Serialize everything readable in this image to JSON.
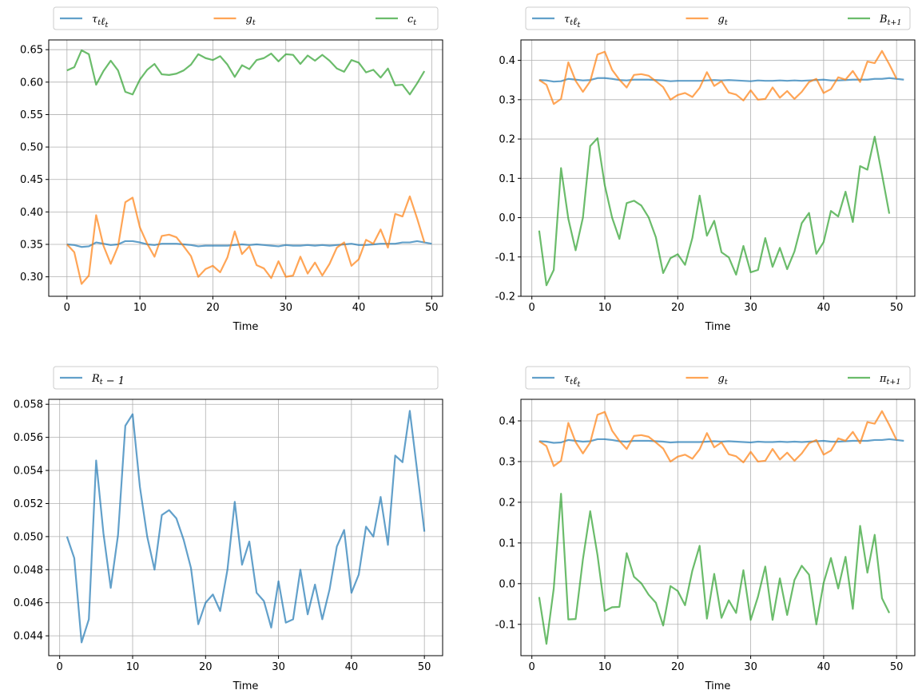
{
  "chart_data": [
    {
      "type": "line",
      "xlabel": "Time",
      "legend_placement": "top, above axes",
      "grid": true,
      "xlim": [
        -2.5,
        51.5
      ],
      "ylim": [
        0.27,
        0.665
      ],
      "xticks": [
        0,
        10,
        20,
        30,
        40,
        50
      ],
      "yticks": [
        0.3,
        0.35,
        0.4,
        0.45,
        0.5,
        0.55,
        0.6,
        0.65
      ],
      "ytick_decimals": 2,
      "x_start": 0,
      "series": [
        {
          "name": "τtℓt",
          "color": "#1f77b4",
          "values": [
            0.35,
            0.349,
            0.346,
            0.347,
            0.353,
            0.351,
            0.349,
            0.35,
            0.355,
            0.355,
            0.353,
            0.35,
            0.349,
            0.351,
            0.351,
            0.351,
            0.35,
            0.349,
            0.347,
            0.348,
            0.348,
            0.348,
            0.348,
            0.349,
            0.35,
            0.349,
            0.35,
            0.349,
            0.348,
            0.347,
            0.349,
            0.348,
            0.348,
            0.349,
            0.348,
            0.349,
            0.348,
            0.349,
            0.35,
            0.351,
            0.349,
            0.349,
            0.35,
            0.351,
            0.351,
            0.351,
            0.353,
            0.353,
            0.355,
            0.353,
            0.351
          ]
        },
        {
          "name": "gt",
          "color": "#ff7f0e",
          "values": [
            0.35,
            0.338,
            0.289,
            0.302,
            0.395,
            0.348,
            0.32,
            0.347,
            0.415,
            0.422,
            0.376,
            0.351,
            0.331,
            0.363,
            0.365,
            0.361,
            0.347,
            0.332,
            0.3,
            0.312,
            0.317,
            0.307,
            0.33,
            0.37,
            0.335,
            0.347,
            0.318,
            0.313,
            0.298,
            0.324,
            0.3,
            0.302,
            0.331,
            0.305,
            0.322,
            0.302,
            0.32,
            0.345,
            0.353,
            0.317,
            0.327,
            0.357,
            0.351,
            0.373,
            0.345,
            0.397,
            0.393,
            0.424,
            0.39,
            0.353
          ]
        },
        {
          "name": "ct",
          "color": "#2ca02c",
          "values": [
            0.618,
            0.623,
            0.649,
            0.643,
            0.596,
            0.617,
            0.633,
            0.618,
            0.585,
            0.581,
            0.604,
            0.619,
            0.628,
            0.612,
            0.611,
            0.613,
            0.618,
            0.627,
            0.643,
            0.637,
            0.634,
            0.64,
            0.627,
            0.608,
            0.626,
            0.62,
            0.634,
            0.637,
            0.644,
            0.632,
            0.643,
            0.642,
            0.628,
            0.641,
            0.633,
            0.642,
            0.633,
            0.621,
            0.616,
            0.634,
            0.63,
            0.615,
            0.619,
            0.607,
            0.621,
            0.595,
            0.596,
            0.581,
            0.598,
            0.617
          ]
        }
      ]
    },
    {
      "type": "line",
      "xlabel": "Time",
      "legend_placement": "top, above axes",
      "grid": true,
      "xlim": [
        -1.5,
        52.5
      ],
      "ylim": [
        -0.2,
        0.452
      ],
      "xticks": [
        0,
        10,
        20,
        30,
        40,
        50
      ],
      "yticks": [
        -0.2,
        -0.1,
        0.0,
        0.1,
        0.2,
        0.3,
        0.4
      ],
      "ytick_decimals": 1,
      "x_start": 1,
      "series": [
        {
          "name": "τtℓt",
          "color": "#1f77b4",
          "values": [
            0.35,
            0.349,
            0.346,
            0.347,
            0.353,
            0.351,
            0.349,
            0.35,
            0.355,
            0.355,
            0.353,
            0.35,
            0.349,
            0.351,
            0.351,
            0.351,
            0.35,
            0.349,
            0.347,
            0.348,
            0.348,
            0.348,
            0.348,
            0.349,
            0.35,
            0.349,
            0.35,
            0.349,
            0.348,
            0.347,
            0.349,
            0.348,
            0.348,
            0.349,
            0.348,
            0.349,
            0.348,
            0.349,
            0.35,
            0.351,
            0.349,
            0.349,
            0.35,
            0.351,
            0.351,
            0.351,
            0.353,
            0.353,
            0.355,
            0.353,
            0.351
          ]
        },
        {
          "name": "gt",
          "color": "#ff7f0e",
          "values": [
            0.35,
            0.338,
            0.289,
            0.302,
            0.395,
            0.348,
            0.32,
            0.347,
            0.415,
            0.422,
            0.376,
            0.351,
            0.331,
            0.363,
            0.365,
            0.361,
            0.347,
            0.332,
            0.3,
            0.312,
            0.317,
            0.307,
            0.33,
            0.37,
            0.335,
            0.347,
            0.318,
            0.313,
            0.298,
            0.324,
            0.3,
            0.302,
            0.331,
            0.305,
            0.322,
            0.302,
            0.32,
            0.345,
            0.353,
            0.317,
            0.327,
            0.357,
            0.351,
            0.373,
            0.345,
            0.397,
            0.393,
            0.424,
            0.39,
            0.353
          ]
        },
        {
          "name": "Bt+1",
          "color": "#2ca02c",
          "values": [
            -0.033,
            -0.172,
            -0.133,
            0.126,
            -0.003,
            -0.083,
            0.0,
            0.182,
            0.202,
            0.082,
            0.0,
            -0.054,
            0.037,
            0.043,
            0.031,
            0.001,
            -0.05,
            -0.141,
            -0.103,
            -0.093,
            -0.12,
            -0.052,
            0.056,
            -0.046,
            -0.008,
            -0.088,
            -0.101,
            -0.145,
            -0.072,
            -0.139,
            -0.133,
            -0.052,
            -0.125,
            -0.077,
            -0.131,
            -0.086,
            -0.014,
            0.012,
            -0.092,
            -0.062,
            0.017,
            0.003,
            0.066,
            -0.011,
            0.131,
            0.122,
            0.206,
            0.11,
            0.01
          ]
        }
      ]
    },
    {
      "type": "line",
      "xlabel": "Time",
      "legend_placement": "top, above axes",
      "grid": true,
      "xlim": [
        -1.5,
        52.5
      ],
      "ylim": [
        0.0428,
        0.0583
      ],
      "xticks": [
        0,
        10,
        20,
        30,
        40,
        50
      ],
      "yticks": [
        0.044,
        0.046,
        0.048,
        0.05,
        0.052,
        0.054,
        0.056,
        0.058
      ],
      "ytick_decimals": 3,
      "x_start": 1,
      "series": [
        {
          "name": "Rt − 1",
          "color": "#1f77b4",
          "values": [
            0.05,
            0.0487,
            0.0436,
            0.045,
            0.0546,
            0.0502,
            0.0469,
            0.0501,
            0.0567,
            0.0574,
            0.053,
            0.05,
            0.048,
            0.0513,
            0.0516,
            0.0511,
            0.0498,
            0.0481,
            0.0447,
            0.046,
            0.0465,
            0.0455,
            0.048,
            0.0521,
            0.0483,
            0.0497,
            0.0466,
            0.0461,
            0.0445,
            0.0473,
            0.0448,
            0.045,
            0.048,
            0.0453,
            0.0471,
            0.045,
            0.0468,
            0.0494,
            0.0504,
            0.0466,
            0.0477,
            0.0506,
            0.05,
            0.0524,
            0.0495,
            0.0549,
            0.0545,
            0.0576,
            0.054,
            0.0503
          ]
        }
      ]
    },
    {
      "type": "line",
      "xlabel": "Time",
      "legend_placement": "top, above axes",
      "grid": true,
      "xlim": [
        -1.5,
        52.5
      ],
      "ylim": [
        -0.177,
        0.453
      ],
      "xticks": [
        0,
        10,
        20,
        30,
        40,
        50
      ],
      "yticks": [
        -0.1,
        0.0,
        0.1,
        0.2,
        0.3,
        0.4
      ],
      "ytick_decimals": 1,
      "x_start": 1,
      "series": [
        {
          "name": "τtℓt",
          "color": "#1f77b4",
          "values": [
            0.35,
            0.349,
            0.346,
            0.347,
            0.353,
            0.351,
            0.349,
            0.35,
            0.355,
            0.355,
            0.353,
            0.35,
            0.349,
            0.351,
            0.351,
            0.351,
            0.35,
            0.349,
            0.347,
            0.348,
            0.348,
            0.348,
            0.348,
            0.349,
            0.35,
            0.349,
            0.35,
            0.349,
            0.348,
            0.347,
            0.349,
            0.348,
            0.348,
            0.349,
            0.348,
            0.349,
            0.348,
            0.349,
            0.35,
            0.351,
            0.349,
            0.349,
            0.35,
            0.351,
            0.351,
            0.351,
            0.353,
            0.353,
            0.355,
            0.353,
            0.351
          ]
        },
        {
          "name": "gt",
          "color": "#ff7f0e",
          "values": [
            0.35,
            0.338,
            0.289,
            0.302,
            0.395,
            0.348,
            0.32,
            0.347,
            0.415,
            0.422,
            0.376,
            0.351,
            0.331,
            0.363,
            0.365,
            0.361,
            0.347,
            0.332,
            0.3,
            0.312,
            0.317,
            0.307,
            0.33,
            0.37,
            0.335,
            0.347,
            0.318,
            0.313,
            0.298,
            0.324,
            0.3,
            0.302,
            0.331,
            0.305,
            0.322,
            0.302,
            0.32,
            0.345,
            0.353,
            0.317,
            0.327,
            0.357,
            0.351,
            0.373,
            0.345,
            0.397,
            0.393,
            0.424,
            0.39,
            0.353
          ]
        },
        {
          "name": "πt+1",
          "color": "#2ca02c",
          "values": [
            -0.033,
            -0.148,
            -0.012,
            0.221,
            -0.088,
            -0.087,
            0.06,
            0.178,
            0.07,
            -0.067,
            -0.058,
            -0.057,
            0.075,
            0.017,
            0.001,
            -0.027,
            -0.047,
            -0.103,
            -0.006,
            -0.018,
            -0.053,
            0.032,
            0.093,
            -0.086,
            0.024,
            -0.084,
            -0.041,
            -0.072,
            0.033,
            -0.089,
            -0.032,
            0.042,
            -0.089,
            0.013,
            -0.077,
            0.009,
            0.044,
            0.022,
            -0.1,
            0.002,
            0.063,
            -0.012,
            0.066,
            -0.062,
            0.142,
            0.027,
            0.12,
            -0.036,
            -0.072
          ]
        }
      ]
    }
  ]
}
